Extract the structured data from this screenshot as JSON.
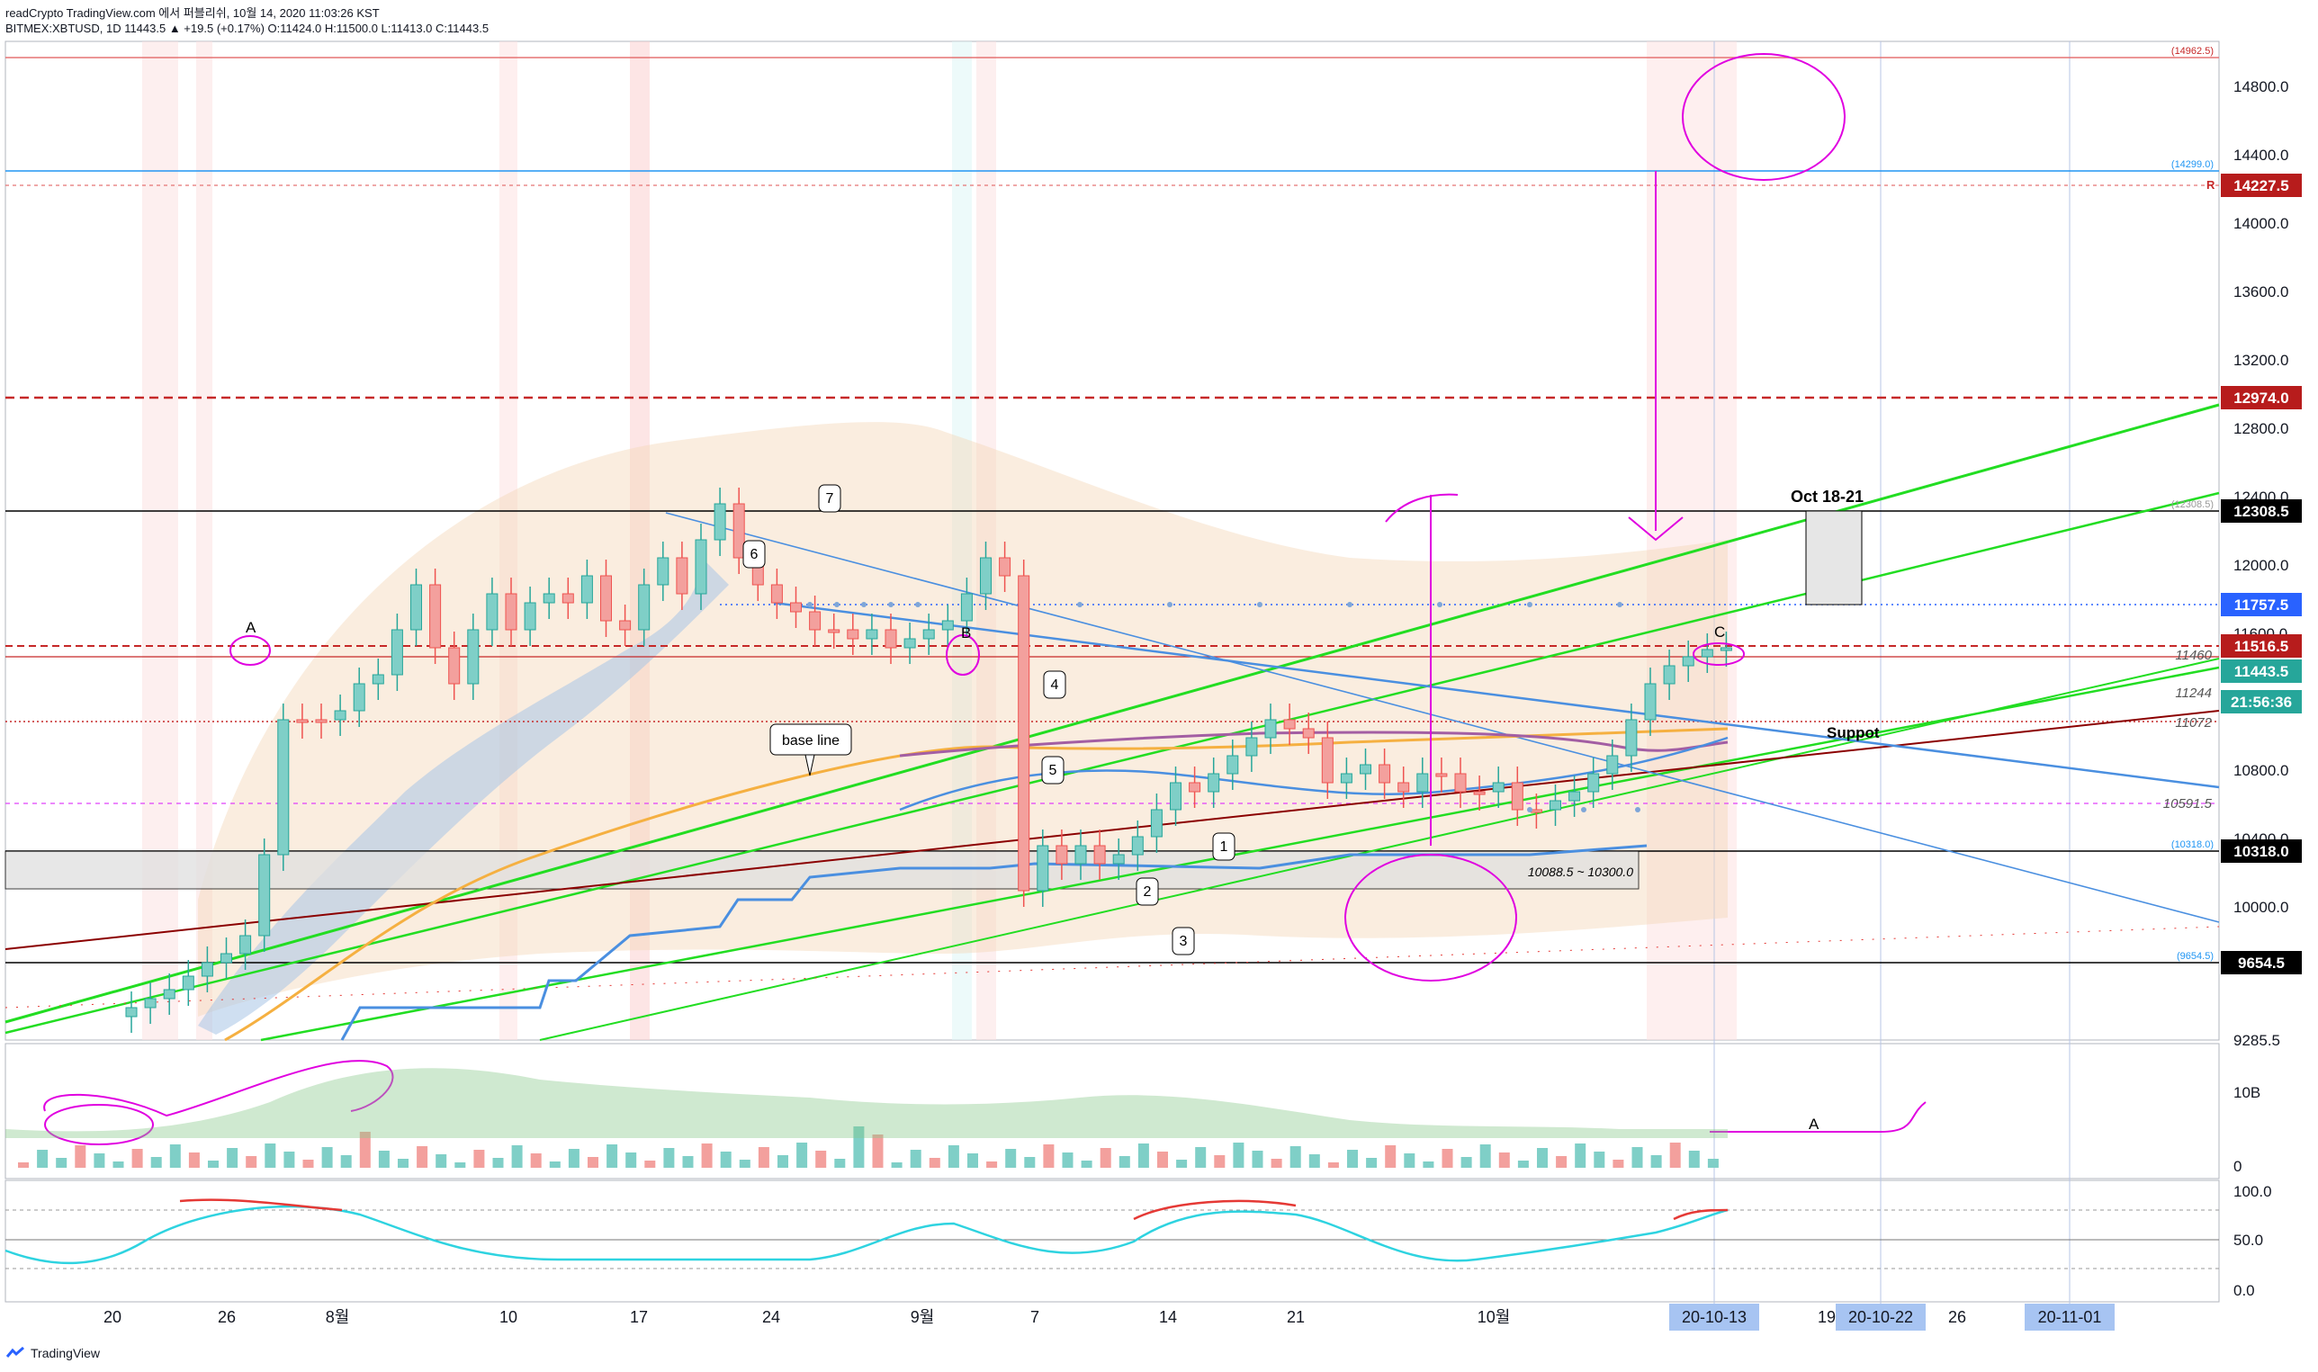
{
  "header": {
    "line1": "readCrypto TradingView.com 에서 퍼블리쉬, 10월 14, 2020 11:03:26 KST",
    "line2": "BITMEX:XBTUSD, 1D 11443.5 ▲ +19.5 (+0.17%) O:11424.0 H:11500.0 L:11413.0 C:11443.5"
  },
  "footer": {
    "brand": "TradingView"
  },
  "price_axis": {
    "ticks": [
      "14800.0",
      "14400.0",
      "14000.0",
      "13600.0",
      "13200.0",
      "12800.0",
      "12400.0",
      "12000.0",
      "11600.0",
      "10800.0",
      "10400.0",
      "10000.0",
      "9285.5"
    ]
  },
  "price_tags": [
    {
      "label": "14227.5",
      "color": "#b71c1c"
    },
    {
      "label": "12974.0",
      "color": "#b71c1c"
    },
    {
      "label": "12308.5",
      "color": "#000000"
    },
    {
      "label": "11757.5",
      "color": "#2962ff"
    },
    {
      "label": "11516.5",
      "color": "#b71c1c"
    },
    {
      "label": "11443.5",
      "color": "#26a69a"
    },
    {
      "label": "21:56:36",
      "color": "#26a69a"
    },
    {
      "label": "10318.0",
      "color": "#000000"
    },
    {
      "label": "9654.5",
      "color": "#000000"
    }
  ],
  "small_labels": {
    "l14962": "(14962.5)",
    "l14299": "(14299.0)",
    "l12308": "(12308.5)",
    "l10318": "(10318.0)",
    "l9654": "(9654.5)",
    "r_mark": "R",
    "v11460": "11460",
    "v11244": "11244",
    "v11072": "11072",
    "v10591": "10591.5"
  },
  "volume_axis": [
    "10B",
    "0"
  ],
  "osc_axis": [
    "100.0",
    "50.0",
    "0.0"
  ],
  "time_axis": {
    "labels": [
      "20",
      "26",
      "8월",
      "10",
      "17",
      "24",
      "9월",
      "7",
      "14",
      "21",
      "10월",
      "19",
      "26"
    ],
    "badges": [
      "20-10-13",
      "20-10-22",
      "20-11-01"
    ]
  },
  "annotations": {
    "oct": "Oct 18-21",
    "baseline": "base line",
    "range": "10088.5 ~ 10300.0",
    "suppot": "Suppot",
    "A": "A",
    "B": "B",
    "C": "C",
    "A2": "A",
    "n1": "1",
    "n2": "2",
    "n3": "3",
    "n4": "4",
    "n5": "5",
    "n6": "6",
    "n7": "7"
  },
  "colors": {
    "up": "#26a69a",
    "down": "#ef5350",
    "green_line": "#00e600",
    "magenta": "#e000e0",
    "blue_line": "#4a8fe0",
    "red_dash": "#c62828"
  }
}
